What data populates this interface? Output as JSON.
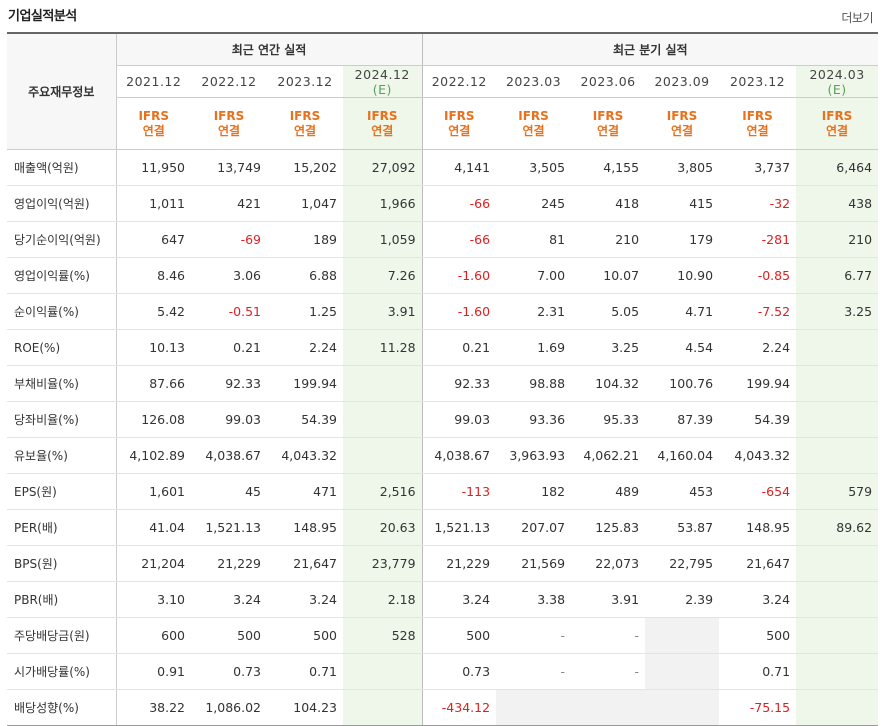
{
  "section_title": "기업실적분석",
  "more_label": "더보기",
  "table": {
    "row_header": "주요재무정보",
    "annual_header": "최근 연간 실적",
    "quarter_header": "최근 분기 실적",
    "periods": [
      {
        "label": "2021.12",
        "sub": "",
        "basis": "IFRS\n연결",
        "est": false
      },
      {
        "label": "2022.12",
        "sub": "",
        "basis": "IFRS\n연결",
        "est": false
      },
      {
        "label": "2023.12",
        "sub": "",
        "basis": "IFRS\n연결",
        "est": false
      },
      {
        "label": "2024.12",
        "sub": "(E)",
        "basis": "IFRS\n연결",
        "est": true
      },
      {
        "label": "2022.12",
        "sub": "",
        "basis": "IFRS\n연결",
        "est": false
      },
      {
        "label": "2023.03",
        "sub": "",
        "basis": "IFRS\n연결",
        "est": false
      },
      {
        "label": "2023.06",
        "sub": "",
        "basis": "IFRS\n연결",
        "est": false
      },
      {
        "label": "2023.09",
        "sub": "",
        "basis": "IFRS\n연결",
        "est": false
      },
      {
        "label": "2023.12",
        "sub": "",
        "basis": "IFRS\n연결",
        "est": false
      },
      {
        "label": "2024.03",
        "sub": "(E)",
        "basis": "IFRS\n연결",
        "est": true
      }
    ],
    "rows": [
      {
        "label": "매출액(억원)",
        "group_start": true,
        "values": [
          "11,950",
          "13,749",
          "15,202",
          "27,092",
          "4,141",
          "3,505",
          "4,155",
          "3,805",
          "3,737",
          "6,464"
        ]
      },
      {
        "label": "영업이익(억원)",
        "group_start": false,
        "values": [
          "1,011",
          "421",
          "1,047",
          "1,966",
          "-66",
          "245",
          "418",
          "415",
          "-32",
          "438"
        ]
      },
      {
        "label": "당기순이익(억원)",
        "group_start": false,
        "values": [
          "647",
          "-69",
          "189",
          "1,059",
          "-66",
          "81",
          "210",
          "179",
          "-281",
          "210"
        ]
      },
      {
        "label": "영업이익률(%)",
        "group_start": true,
        "values": [
          "8.46",
          "3.06",
          "6.88",
          "7.26",
          "-1.60",
          "7.00",
          "10.07",
          "10.90",
          "-0.85",
          "6.77"
        ]
      },
      {
        "label": "순이익률(%)",
        "group_start": false,
        "values": [
          "5.42",
          "-0.51",
          "1.25",
          "3.91",
          "-1.60",
          "2.31",
          "5.05",
          "4.71",
          "-7.52",
          "3.25"
        ]
      },
      {
        "label": "ROE(%)",
        "group_start": false,
        "values": [
          "10.13",
          "0.21",
          "2.24",
          "11.28",
          "0.21",
          "1.69",
          "3.25",
          "4.54",
          "2.24",
          ""
        ]
      },
      {
        "label": "부채비율(%)",
        "group_start": true,
        "values": [
          "87.66",
          "92.33",
          "199.94",
          "",
          "92.33",
          "98.88",
          "104.32",
          "100.76",
          "199.94",
          ""
        ]
      },
      {
        "label": "당좌비율(%)",
        "group_start": false,
        "values": [
          "126.08",
          "99.03",
          "54.39",
          "",
          "99.03",
          "93.36",
          "95.33",
          "87.39",
          "54.39",
          ""
        ]
      },
      {
        "label": "유보율(%)",
        "group_start": false,
        "values": [
          "4,102.89",
          "4,038.67",
          "4,043.32",
          "",
          "4,038.67",
          "3,963.93",
          "4,062.21",
          "4,160.04",
          "4,043.32",
          ""
        ]
      },
      {
        "label": "EPS(원)",
        "group_start": true,
        "values": [
          "1,601",
          "45",
          "471",
          "2,516",
          "-113",
          "182",
          "489",
          "453",
          "-654",
          "579"
        ]
      },
      {
        "label": "PER(배)",
        "group_start": false,
        "values": [
          "41.04",
          "1,521.13",
          "148.95",
          "20.63",
          "1,521.13",
          "207.07",
          "125.83",
          "53.87",
          "148.95",
          "89.62"
        ]
      },
      {
        "label": "BPS(원)",
        "group_start": false,
        "values": [
          "21,204",
          "21,229",
          "21,647",
          "23,779",
          "21,229",
          "21,569",
          "22,073",
          "22,795",
          "21,647",
          ""
        ]
      },
      {
        "label": "PBR(배)",
        "group_start": false,
        "values": [
          "3.10",
          "3.24",
          "3.24",
          "2.18",
          "3.24",
          "3.38",
          "3.91",
          "2.39",
          "3.24",
          ""
        ]
      },
      {
        "label": "주당배당금(원)",
        "group_start": true,
        "values": [
          "600",
          "500",
          "500",
          "528",
          "500",
          "-",
          "-",
          "",
          "500",
          ""
        ]
      },
      {
        "label": "시가배당률(%)",
        "group_start": false,
        "values": [
          "0.91",
          "0.73",
          "0.71",
          "",
          "0.73",
          "-",
          "-",
          "",
          "0.71",
          ""
        ]
      },
      {
        "label": "배당성향(%)",
        "group_start": false,
        "values": [
          "38.22",
          "1,086.02",
          "104.23",
          "",
          "-434.12",
          "",
          "",
          "",
          "-75.15",
          ""
        ]
      }
    ]
  }
}
